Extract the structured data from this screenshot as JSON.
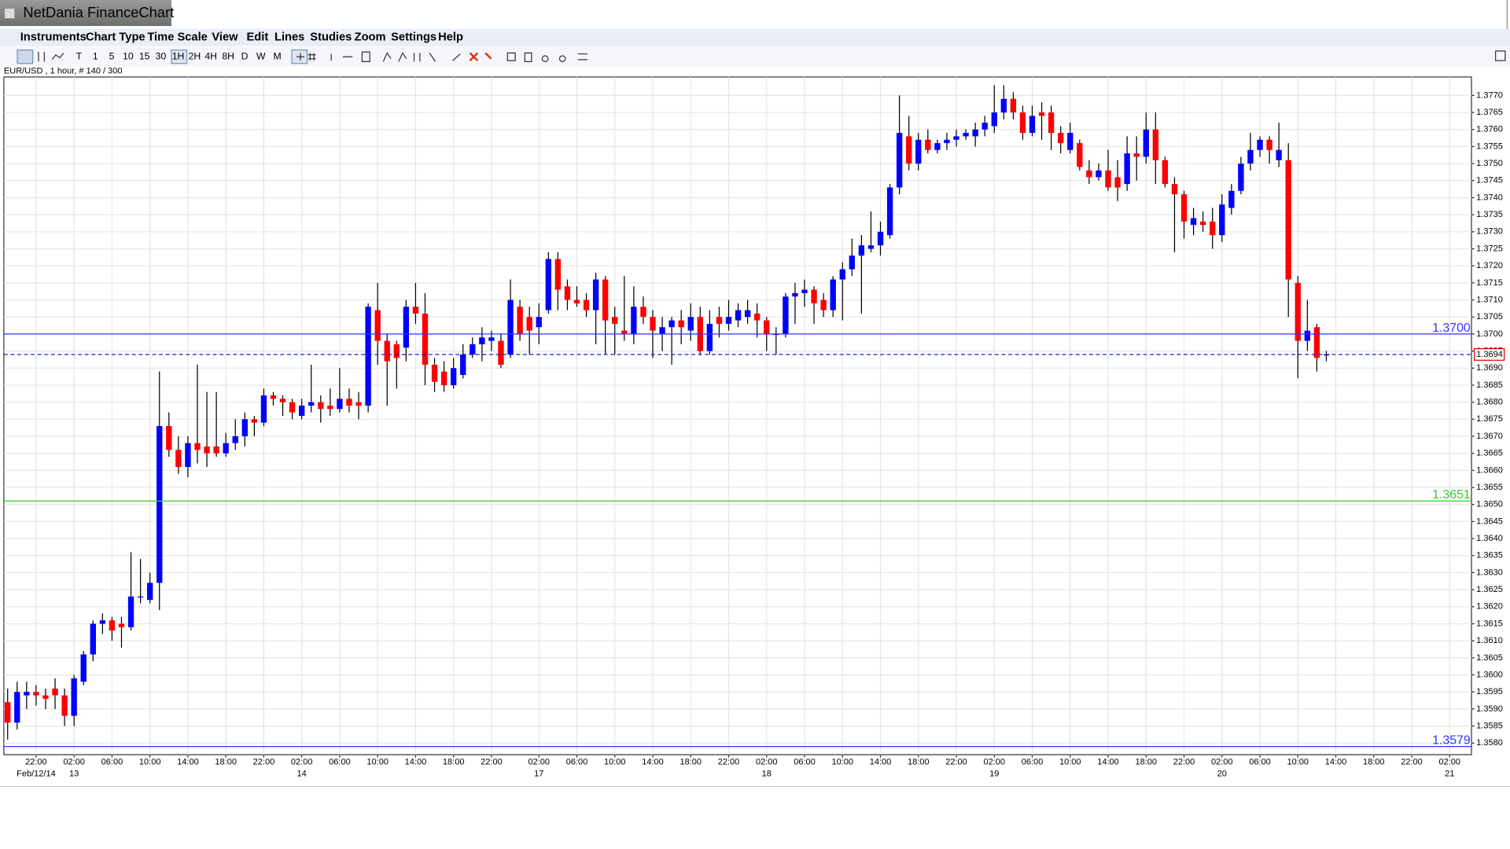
{
  "app": {
    "title": "NetDania FinanceChart",
    "menu": [
      "Instruments",
      "Chart Type",
      "Time Scale",
      "View",
      "Edit",
      "Lines",
      "Studies",
      "Zoom",
      "Settings",
      "Help"
    ],
    "toolbar": [
      "T",
      "1",
      "5",
      "10",
      "15",
      "30",
      "1H",
      "2H",
      "4H",
      "8H",
      "D",
      "W",
      "M"
    ]
  },
  "chart_data": {
    "type": "candlestick",
    "title": "EUR/USD , 1 hour, # 140 / 300",
    "up_color": "#0000ff",
    "down_color": "#ff0000",
    "grid": true,
    "xlim": [
      -0.4,
      154.3
    ],
    "ylim": [
      1.35766,
      1.37754
    ],
    "candles": [
      [
        1.3592,
        1.3596,
        1.3581,
        1.3586
      ],
      [
        1.3586,
        1.3598,
        1.3584,
        1.3595
      ],
      [
        1.3594,
        1.3598,
        1.359,
        1.3595
      ],
      [
        1.3595,
        1.3597,
        1.3591,
        1.3594
      ],
      [
        1.3594,
        1.3596,
        1.359,
        1.3593
      ],
      [
        1.3596,
        1.3599,
        1.359,
        1.3594
      ],
      [
        1.3594,
        1.3596,
        1.3585,
        1.3588
      ],
      [
        1.3588,
        1.36,
        1.3585,
        1.3599
      ],
      [
        1.3598,
        1.3607,
        1.3597,
        1.3606
      ],
      [
        1.3606,
        1.3616,
        1.3604,
        1.3615
      ],
      [
        1.3615,
        1.3618,
        1.3612,
        1.3616
      ],
      [
        1.3616,
        1.3617,
        1.361,
        1.3613
      ],
      [
        1.3615,
        1.3617,
        1.3608,
        1.3614
      ],
      [
        1.3614,
        1.3636,
        1.3613,
        1.3623
      ],
      [
        1.3623,
        1.3634,
        1.3621,
        1.3623
      ],
      [
        1.3622,
        1.363,
        1.3621,
        1.3627
      ],
      [
        1.3627,
        1.3689,
        1.3619,
        1.3673
      ],
      [
        1.3673,
        1.3677,
        1.3664,
        1.3666
      ],
      [
        1.3666,
        1.367,
        1.3659,
        1.3661
      ],
      [
        1.3661,
        1.367,
        1.3658,
        1.3668
      ],
      [
        1.3668,
        1.3691,
        1.3662,
        1.3666
      ],
      [
        1.3667,
        1.3683,
        1.3661,
        1.3665
      ],
      [
        1.3667,
        1.3683,
        1.3664,
        1.3665
      ],
      [
        1.3665,
        1.3671,
        1.3664,
        1.3668
      ],
      [
        1.3668,
        1.3675,
        1.3666,
        1.367
      ],
      [
        1.367,
        1.3677,
        1.3667,
        1.3675
      ],
      [
        1.3675,
        1.3676,
        1.367,
        1.3674
      ],
      [
        1.3674,
        1.3684,
        1.3673,
        1.3682
      ],
      [
        1.3682,
        1.3683,
        1.3679,
        1.3681
      ],
      [
        1.3681,
        1.3682,
        1.3676,
        1.368
      ],
      [
        1.368,
        1.3681,
        1.3675,
        1.3677
      ],
      [
        1.3676,
        1.3681,
        1.3675,
        1.3679
      ],
      [
        1.3679,
        1.3691,
        1.3677,
        1.368
      ],
      [
        1.368,
        1.3682,
        1.3674,
        1.3678
      ],
      [
        1.3679,
        1.3684,
        1.3676,
        1.3678
      ],
      [
        1.3678,
        1.369,
        1.3677,
        1.3681
      ],
      [
        1.3681,
        1.3684,
        1.3677,
        1.3679
      ],
      [
        1.368,
        1.3683,
        1.3675,
        1.3679
      ],
      [
        1.3679,
        1.3709,
        1.3677,
        1.3708
      ],
      [
        1.3707,
        1.3715,
        1.3691,
        1.3698
      ],
      [
        1.3698,
        1.37,
        1.3679,
        1.3692
      ],
      [
        1.3697,
        1.3698,
        1.3684,
        1.3693
      ],
      [
        1.3696,
        1.371,
        1.3692,
        1.3708
      ],
      [
        1.3708,
        1.3715,
        1.3703,
        1.3706
      ],
      [
        1.3706,
        1.3712,
        1.3685,
        1.3691
      ],
      [
        1.3691,
        1.3693,
        1.3683,
        1.3686
      ],
      [
        1.3689,
        1.3692,
        1.3683,
        1.3685
      ],
      [
        1.3685,
        1.3693,
        1.3684,
        1.369
      ],
      [
        1.3688,
        1.3697,
        1.3687,
        1.3694
      ],
      [
        1.3694,
        1.3699,
        1.3693,
        1.3697
      ],
      [
        1.3697,
        1.3702,
        1.3692,
        1.3699
      ],
      [
        1.3698,
        1.3701,
        1.3695,
        1.3699
      ],
      [
        1.3698,
        1.37,
        1.369,
        1.3691
      ],
      [
        1.3694,
        1.3716,
        1.3693,
        1.371
      ],
      [
        1.3708,
        1.371,
        1.3698,
        1.37
      ],
      [
        1.3705,
        1.3708,
        1.3694,
        1.3701
      ],
      [
        1.3702,
        1.3709,
        1.3697,
        1.3705
      ],
      [
        1.3707,
        1.3724,
        1.3706,
        1.3722
      ],
      [
        1.3722,
        1.3724,
        1.3707,
        1.3713
      ],
      [
        1.3714,
        1.3716,
        1.3707,
        1.371
      ],
      [
        1.371,
        1.3714,
        1.3708,
        1.3709
      ],
      [
        1.371,
        1.3712,
        1.3705,
        1.3707
      ],
      [
        1.3707,
        1.3718,
        1.3697,
        1.3716
      ],
      [
        1.3716,
        1.3717,
        1.3694,
        1.3704
      ],
      [
        1.3705,
        1.3708,
        1.3694,
        1.3703
      ],
      [
        1.3701,
        1.3717,
        1.3698,
        1.37
      ],
      [
        1.37,
        1.3714,
        1.3697,
        1.3708
      ],
      [
        1.3708,
        1.3711,
        1.3703,
        1.3705
      ],
      [
        1.3705,
        1.3707,
        1.3693,
        1.3701
      ],
      [
        1.37,
        1.3705,
        1.3695,
        1.3702
      ],
      [
        1.3702,
        1.3705,
        1.3691,
        1.3704
      ],
      [
        1.3704,
        1.3707,
        1.3697,
        1.3702
      ],
      [
        1.3701,
        1.3709,
        1.3698,
        1.3705
      ],
      [
        1.3705,
        1.3708,
        1.3694,
        1.3695
      ],
      [
        1.3695,
        1.3707,
        1.3694,
        1.3703
      ],
      [
        1.3705,
        1.3708,
        1.3699,
        1.3703
      ],
      [
        1.3703,
        1.371,
        1.3701,
        1.3705
      ],
      [
        1.3704,
        1.3709,
        1.3702,
        1.3707
      ],
      [
        1.3705,
        1.371,
        1.3703,
        1.3707
      ],
      [
        1.3706,
        1.3709,
        1.3699,
        1.3704
      ],
      [
        1.3704,
        1.3705,
        1.3695,
        1.37
      ],
      [
        1.37,
        1.3702,
        1.3694,
        1.37
      ],
      [
        1.37,
        1.3712,
        1.3699,
        1.3711
      ],
      [
        1.3711,
        1.3715,
        1.3703,
        1.3712
      ],
      [
        1.3712,
        1.3716,
        1.3708,
        1.3713
      ],
      [
        1.3713,
        1.3714,
        1.3703,
        1.3709
      ],
      [
        1.371,
        1.3712,
        1.3705,
        1.3707
      ],
      [
        1.3707,
        1.3717,
        1.3705,
        1.3716
      ],
      [
        1.3716,
        1.3721,
        1.3704,
        1.3719
      ],
      [
        1.3719,
        1.3728,
        1.3717,
        1.3723
      ],
      [
        1.3723,
        1.3729,
        1.3706,
        1.3726
      ],
      [
        1.3725,
        1.3736,
        1.3724,
        1.3726
      ],
      [
        1.3726,
        1.3733,
        1.3723,
        1.373
      ],
      [
        1.3729,
        1.3744,
        1.3728,
        1.3743
      ],
      [
        1.3743,
        1.377,
        1.3741,
        1.3759
      ],
      [
        1.3758,
        1.3764,
        1.3748,
        1.375
      ],
      [
        1.375,
        1.3759,
        1.3748,
        1.3757
      ],
      [
        1.3757,
        1.376,
        1.3753,
        1.3754
      ],
      [
        1.3754,
        1.3757,
        1.3753,
        1.3756
      ],
      [
        1.3756,
        1.3759,
        1.3754,
        1.3757
      ],
      [
        1.3757,
        1.376,
        1.3755,
        1.3758
      ],
      [
        1.3758,
        1.376,
        1.3757,
        1.3759
      ],
      [
        1.3758,
        1.3762,
        1.3755,
        1.376
      ],
      [
        1.376,
        1.3764,
        1.3758,
        1.3762
      ],
      [
        1.3761,
        1.3773,
        1.3759,
        1.3765
      ],
      [
        1.3765,
        1.3773,
        1.3763,
        1.3769
      ],
      [
        1.3769,
        1.3771,
        1.3763,
        1.3765
      ],
      [
        1.3765,
        1.3767,
        1.3757,
        1.3759
      ],
      [
        1.3759,
        1.3767,
        1.3758,
        1.3764
      ],
      [
        1.3765,
        1.3768,
        1.3757,
        1.3764
      ],
      [
        1.3765,
        1.3767,
        1.3754,
        1.3759
      ],
      [
        1.3759,
        1.3761,
        1.3753,
        1.3756
      ],
      [
        1.3754,
        1.3762,
        1.3753,
        1.3759
      ],
      [
        1.3756,
        1.3757,
        1.3748,
        1.3749
      ],
      [
        1.3748,
        1.3751,
        1.3744,
        1.3746
      ],
      [
        1.3746,
        1.375,
        1.3745,
        1.3748
      ],
      [
        1.3748,
        1.3754,
        1.3742,
        1.3743
      ],
      [
        1.3746,
        1.3751,
        1.3739,
        1.3743
      ],
      [
        1.3744,
        1.3758,
        1.3742,
        1.3753
      ],
      [
        1.3753,
        1.3758,
        1.3745,
        1.3752
      ],
      [
        1.3752,
        1.3765,
        1.375,
        1.376
      ],
      [
        1.376,
        1.3765,
        1.3744,
        1.3751
      ],
      [
        1.3751,
        1.3752,
        1.3743,
        1.3744
      ],
      [
        1.3744,
        1.3746,
        1.3724,
        1.3741
      ],
      [
        1.3741,
        1.3742,
        1.3728,
        1.3733
      ],
      [
        1.3732,
        1.3737,
        1.3729,
        1.3734
      ],
      [
        1.3733,
        1.3736,
        1.373,
        1.3732
      ],
      [
        1.3733,
        1.3737,
        1.3725,
        1.3729
      ],
      [
        1.3729,
        1.3741,
        1.3727,
        1.3738
      ],
      [
        1.3737,
        1.3744,
        1.3735,
        1.3742
      ],
      [
        1.3742,
        1.3752,
        1.3741,
        1.375
      ],
      [
        1.375,
        1.3759,
        1.3748,
        1.3754
      ],
      [
        1.3754,
        1.3758,
        1.3752,
        1.3757
      ],
      [
        1.3757,
        1.3758,
        1.375,
        1.3754
      ],
      [
        1.3751,
        1.3762,
        1.3749,
        1.3754
      ],
      [
        1.3751,
        1.3756,
        1.3705,
        1.3716
      ],
      [
        1.3715,
        1.3717,
        1.3687,
        1.3698
      ],
      [
        1.3698,
        1.371,
        1.3695,
        1.3701
      ],
      [
        1.3702,
        1.3703,
        1.3689,
        1.3693
      ],
      [
        1.3694,
        1.3695,
        1.3692,
        1.3694
      ]
    ],
    "xticks": [
      {
        "value": 3,
        "label": "22:00"
      },
      {
        "value": 7,
        "label": "02:00"
      },
      {
        "value": 11,
        "label": "06:00"
      },
      {
        "value": 15,
        "label": "10:00"
      },
      {
        "value": 19,
        "label": "14:00"
      },
      {
        "value": 23,
        "label": "18:00"
      },
      {
        "value": 27,
        "label": "22:00"
      },
      {
        "value": 31,
        "label": "02:00"
      },
      {
        "value": 35,
        "label": "06:00"
      },
      {
        "value": 39,
        "label": "10:00"
      },
      {
        "value": 43,
        "label": "14:00"
      },
      {
        "value": 47,
        "label": "18:00"
      },
      {
        "value": 51,
        "label": "22:00"
      },
      {
        "value": 56,
        "label": "02:00"
      },
      {
        "value": 60,
        "label": "06:00"
      },
      {
        "value": 64,
        "label": "10:00"
      },
      {
        "value": 68,
        "label": "14:00"
      },
      {
        "value": 72,
        "label": "18:00"
      },
      {
        "value": 76,
        "label": "22:00"
      },
      {
        "value": 80,
        "label": "02:00"
      },
      {
        "value": 84,
        "label": "06:00"
      },
      {
        "value": 88,
        "label": "10:00"
      },
      {
        "value": 92,
        "label": "14:00"
      },
      {
        "value": 96,
        "label": "18:00"
      },
      {
        "value": 100,
        "label": "22:00"
      },
      {
        "value": 104,
        "label": "02:00"
      },
      {
        "value": 108,
        "label": "06:00"
      },
      {
        "value": 112,
        "label": "10:00"
      },
      {
        "value": 116,
        "label": "14:00"
      },
      {
        "value": 120,
        "label": "18:00"
      },
      {
        "value": 124,
        "label": "22:00"
      },
      {
        "value": 128,
        "label": "02:00"
      },
      {
        "value": 132,
        "label": "06:00"
      },
      {
        "value": 136,
        "label": "10:00"
      },
      {
        "value": 140,
        "label": "14:00"
      },
      {
        "value": 144,
        "label": "18:00"
      },
      {
        "value": 148,
        "label": "22:00"
      },
      {
        "value": 152,
        "label": "02:00"
      }
    ],
    "date_ticks": [
      {
        "value": 3,
        "label": "Feb/12/14"
      },
      {
        "value": 7,
        "label": "13"
      },
      {
        "value": 31,
        "label": "14"
      },
      {
        "value": 56,
        "label": "17"
      },
      {
        "value": 80,
        "label": "18"
      },
      {
        "value": 104,
        "label": "19"
      },
      {
        "value": 128,
        "label": "20"
      },
      {
        "value": 152,
        "label": "21"
      }
    ],
    "yticks": [
      {
        "value": 1.358,
        "label": "1.3580"
      },
      1.3585,
      {
        "value": 1.359,
        "label": "1.3590"
      },
      1.3595,
      {
        "value": 1.36,
        "label": "1.3600"
      },
      1.3605,
      {
        "value": 1.361,
        "label": "1.3610"
      },
      1.3615,
      {
        "value": 1.362,
        "label": "1.3620"
      },
      1.3625,
      {
        "value": 1.363,
        "label": "1.3630"
      },
      1.3635,
      {
        "value": 1.364,
        "label": "1.3640"
      },
      1.3645,
      {
        "value": 1.365,
        "label": "1.3650"
      },
      1.3655,
      {
        "value": 1.366,
        "label": "1.3660"
      },
      1.3665,
      {
        "value": 1.367,
        "label": "1.3670"
      },
      1.3675,
      {
        "value": 1.368,
        "label": "1.3680"
      },
      1.3685,
      {
        "value": 1.369,
        "label": "1.3690"
      },
      1.3695,
      {
        "value": 1.37,
        "label": "1.3700"
      },
      1.3705,
      {
        "value": 1.371,
        "label": "1.3710"
      },
      1.3715,
      {
        "value": 1.372,
        "label": "1.3720"
      },
      1.3725,
      {
        "value": 1.373,
        "label": "1.3730"
      },
      1.3735,
      {
        "value": 1.374,
        "label": "1.3740"
      },
      1.3745,
      {
        "value": 1.375,
        "label": "1.3750"
      },
      1.3755,
      {
        "value": 1.376,
        "label": "1.3760"
      },
      1.3765,
      {
        "value": 1.377,
        "label": "1.3770"
      }
    ],
    "lines": [
      {
        "value": 1.37,
        "label": "1.3700",
        "color": "#3333ff"
      },
      {
        "value": 1.3651,
        "label": "1.3651",
        "color": "#33cc33"
      },
      {
        "value": 1.3579,
        "label": "1.3579",
        "color": "#3333ff"
      }
    ],
    "last_price": {
      "value": 1.3694,
      "label": "1.3694",
      "color": "#0000cc"
    }
  }
}
